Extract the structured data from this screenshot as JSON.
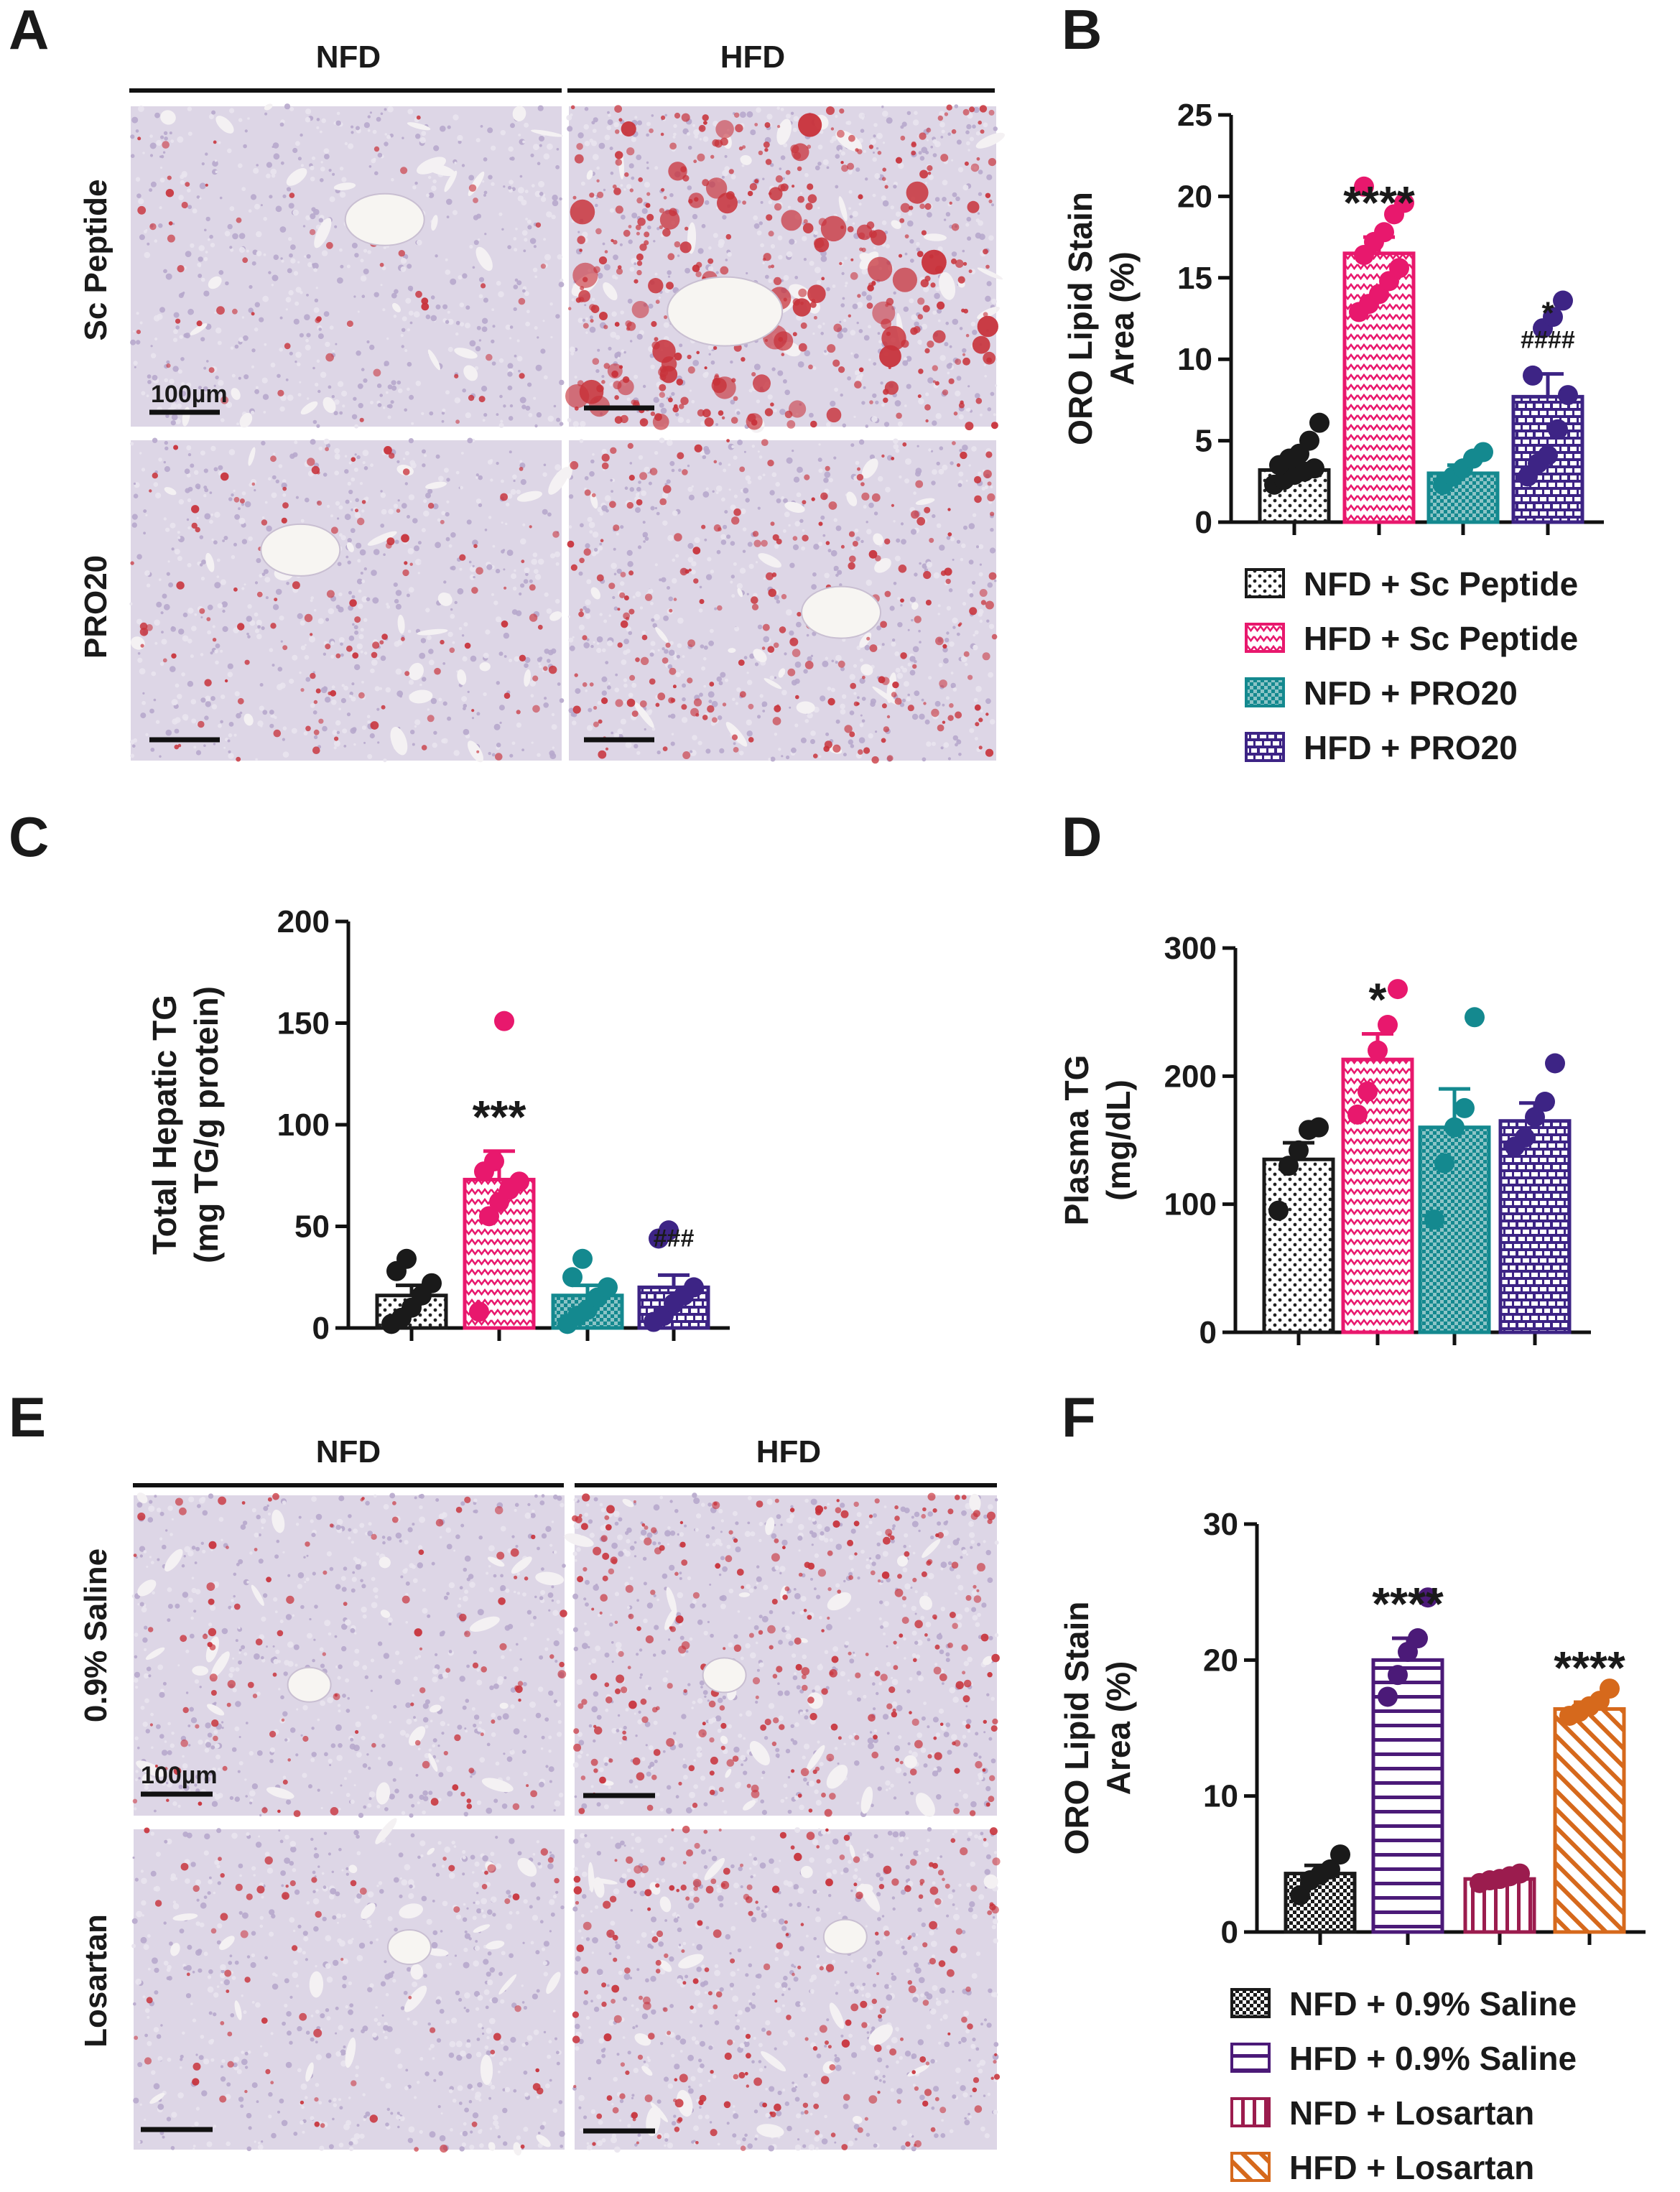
{
  "panels": {
    "A": {
      "label": "A",
      "col_headers": [
        "NFD",
        "HFD"
      ],
      "row_headers": [
        "Sc Peptide",
        "PRO20"
      ],
      "scale_bar": "100µm"
    },
    "E": {
      "label": "E",
      "col_headers": [
        "NFD",
        "HFD"
      ],
      "row_headers": [
        "0.9% Saline",
        "Losartan"
      ],
      "scale_bar": "100µm"
    }
  },
  "colors": {
    "black": "#1a1a1a",
    "pink": "#e8186d",
    "teal": "#14898f",
    "purple": "#3d2485",
    "purple_f": "#4b1a78",
    "maroon": "#9b1c4e",
    "orange": "#d6691c",
    "tissue_lipid": "#c8323a",
    "tissue_base": "#ddd6e6"
  },
  "chart_data": [
    {
      "panel": "B",
      "type": "bar",
      "ylabel": "ORO Lipid Stain Area (%)",
      "ylim": [
        0,
        25
      ],
      "yticks": [
        0,
        5,
        10,
        15,
        20,
        25
      ],
      "categories": [
        "NFD + Sc Peptide",
        "HFD + Sc Peptide",
        "NFD + PRO20",
        "HFD + PRO20"
      ],
      "values": [
        3.2,
        16.5,
        3.0,
        7.7
      ],
      "sem": [
        0.4,
        1.0,
        0.5,
        1.4
      ],
      "annotations": [
        "",
        "****",
        "",
        "*\n####"
      ],
      "points": [
        [
          2.3,
          2.6,
          2.9,
          3.1,
          3.3,
          3.5,
          3.9,
          4.2,
          5.0,
          6.1
        ],
        [
          12.9,
          13.4,
          14.0,
          14.8,
          15.6,
          16.4,
          17.2,
          17.8,
          18.9,
          19.6,
          20.6
        ],
        [
          2.3,
          2.8,
          3.3,
          3.9,
          4.3
        ],
        [
          2.8,
          3.6,
          4.1,
          5.7,
          7.8,
          9.0,
          11.9,
          12.6,
          13.6
        ]
      ],
      "legend": [
        "NFD + Sc Peptide",
        "HFD + Sc Peptide",
        "NFD + PRO20",
        "HFD + PRO20"
      ]
    },
    {
      "panel": "C",
      "type": "bar",
      "ylabel": "Total Hepatic TG (mg TG/g protein)",
      "ylim": [
        0,
        200
      ],
      "yticks": [
        0,
        50,
        100,
        150,
        200
      ],
      "categories": [
        "NFD + Sc Peptide",
        "HFD + Sc Peptide",
        "NFD + PRO20",
        "HFD + PRO20"
      ],
      "values": [
        16,
        73,
        16,
        20
      ],
      "sem": [
        5,
        14,
        5,
        6
      ],
      "annotations": [
        "",
        "***",
        "",
        "###"
      ],
      "points": [
        [
          2,
          5,
          10,
          16,
          22,
          28,
          34
        ],
        [
          8,
          55,
          62,
          68,
          72,
          77,
          82,
          151
        ],
        [
          2,
          6,
          9,
          15,
          20,
          25,
          34
        ],
        [
          3,
          6,
          12,
          16,
          20,
          44,
          48
        ]
      ]
    },
    {
      "panel": "D",
      "type": "bar",
      "ylabel": "Plasma TG (mg/dL)",
      "ylim": [
        0,
        300
      ],
      "yticks": [
        0,
        100,
        200,
        300
      ],
      "categories": [
        "NFD + Sc Peptide",
        "HFD + Sc Peptide",
        "NFD + PRO20",
        "HFD + PRO20"
      ],
      "values": [
        135,
        213,
        160,
        165
      ],
      "sem": [
        13,
        20,
        30,
        14
      ],
      "annotations": [
        "",
        "*",
        "",
        ""
      ],
      "points": [
        [
          95,
          130,
          142,
          158,
          160
        ],
        [
          170,
          188,
          220,
          240,
          268
        ],
        [
          88,
          132,
          160,
          175,
          246
        ],
        [
          145,
          152,
          168,
          180,
          210
        ]
      ]
    },
    {
      "panel": "F",
      "type": "bar",
      "ylabel": "ORO Lipid Stain Area (%)",
      "ylim": [
        0,
        30
      ],
      "yticks": [
        0,
        10,
        20,
        30
      ],
      "categories": [
        "NFD + 0.9% Saline",
        "HFD + 0.9% Saline",
        "NFD + Losartan",
        "HFD + Losartan"
      ],
      "values": [
        4.3,
        20.0,
        3.9,
        16.4
      ],
      "sem": [
        0.6,
        1.6,
        0.2,
        0.5
      ],
      "annotations": [
        "",
        "****",
        "",
        "****"
      ],
      "points": [
        [
          2.7,
          3.8,
          4.2,
          4.6,
          5.7
        ],
        [
          17.3,
          18.9,
          20.6,
          21.6,
          24.6
        ],
        [
          3.6,
          3.8,
          3.9,
          4.1,
          4.3
        ],
        [
          15.9,
          16.2,
          16.6,
          17.0,
          17.9
        ]
      ],
      "legend": [
        "NFD + 0.9% Saline",
        "HFD + 0.9% Saline",
        "NFD + Losartan",
        "HFD + Losartan"
      ]
    }
  ]
}
